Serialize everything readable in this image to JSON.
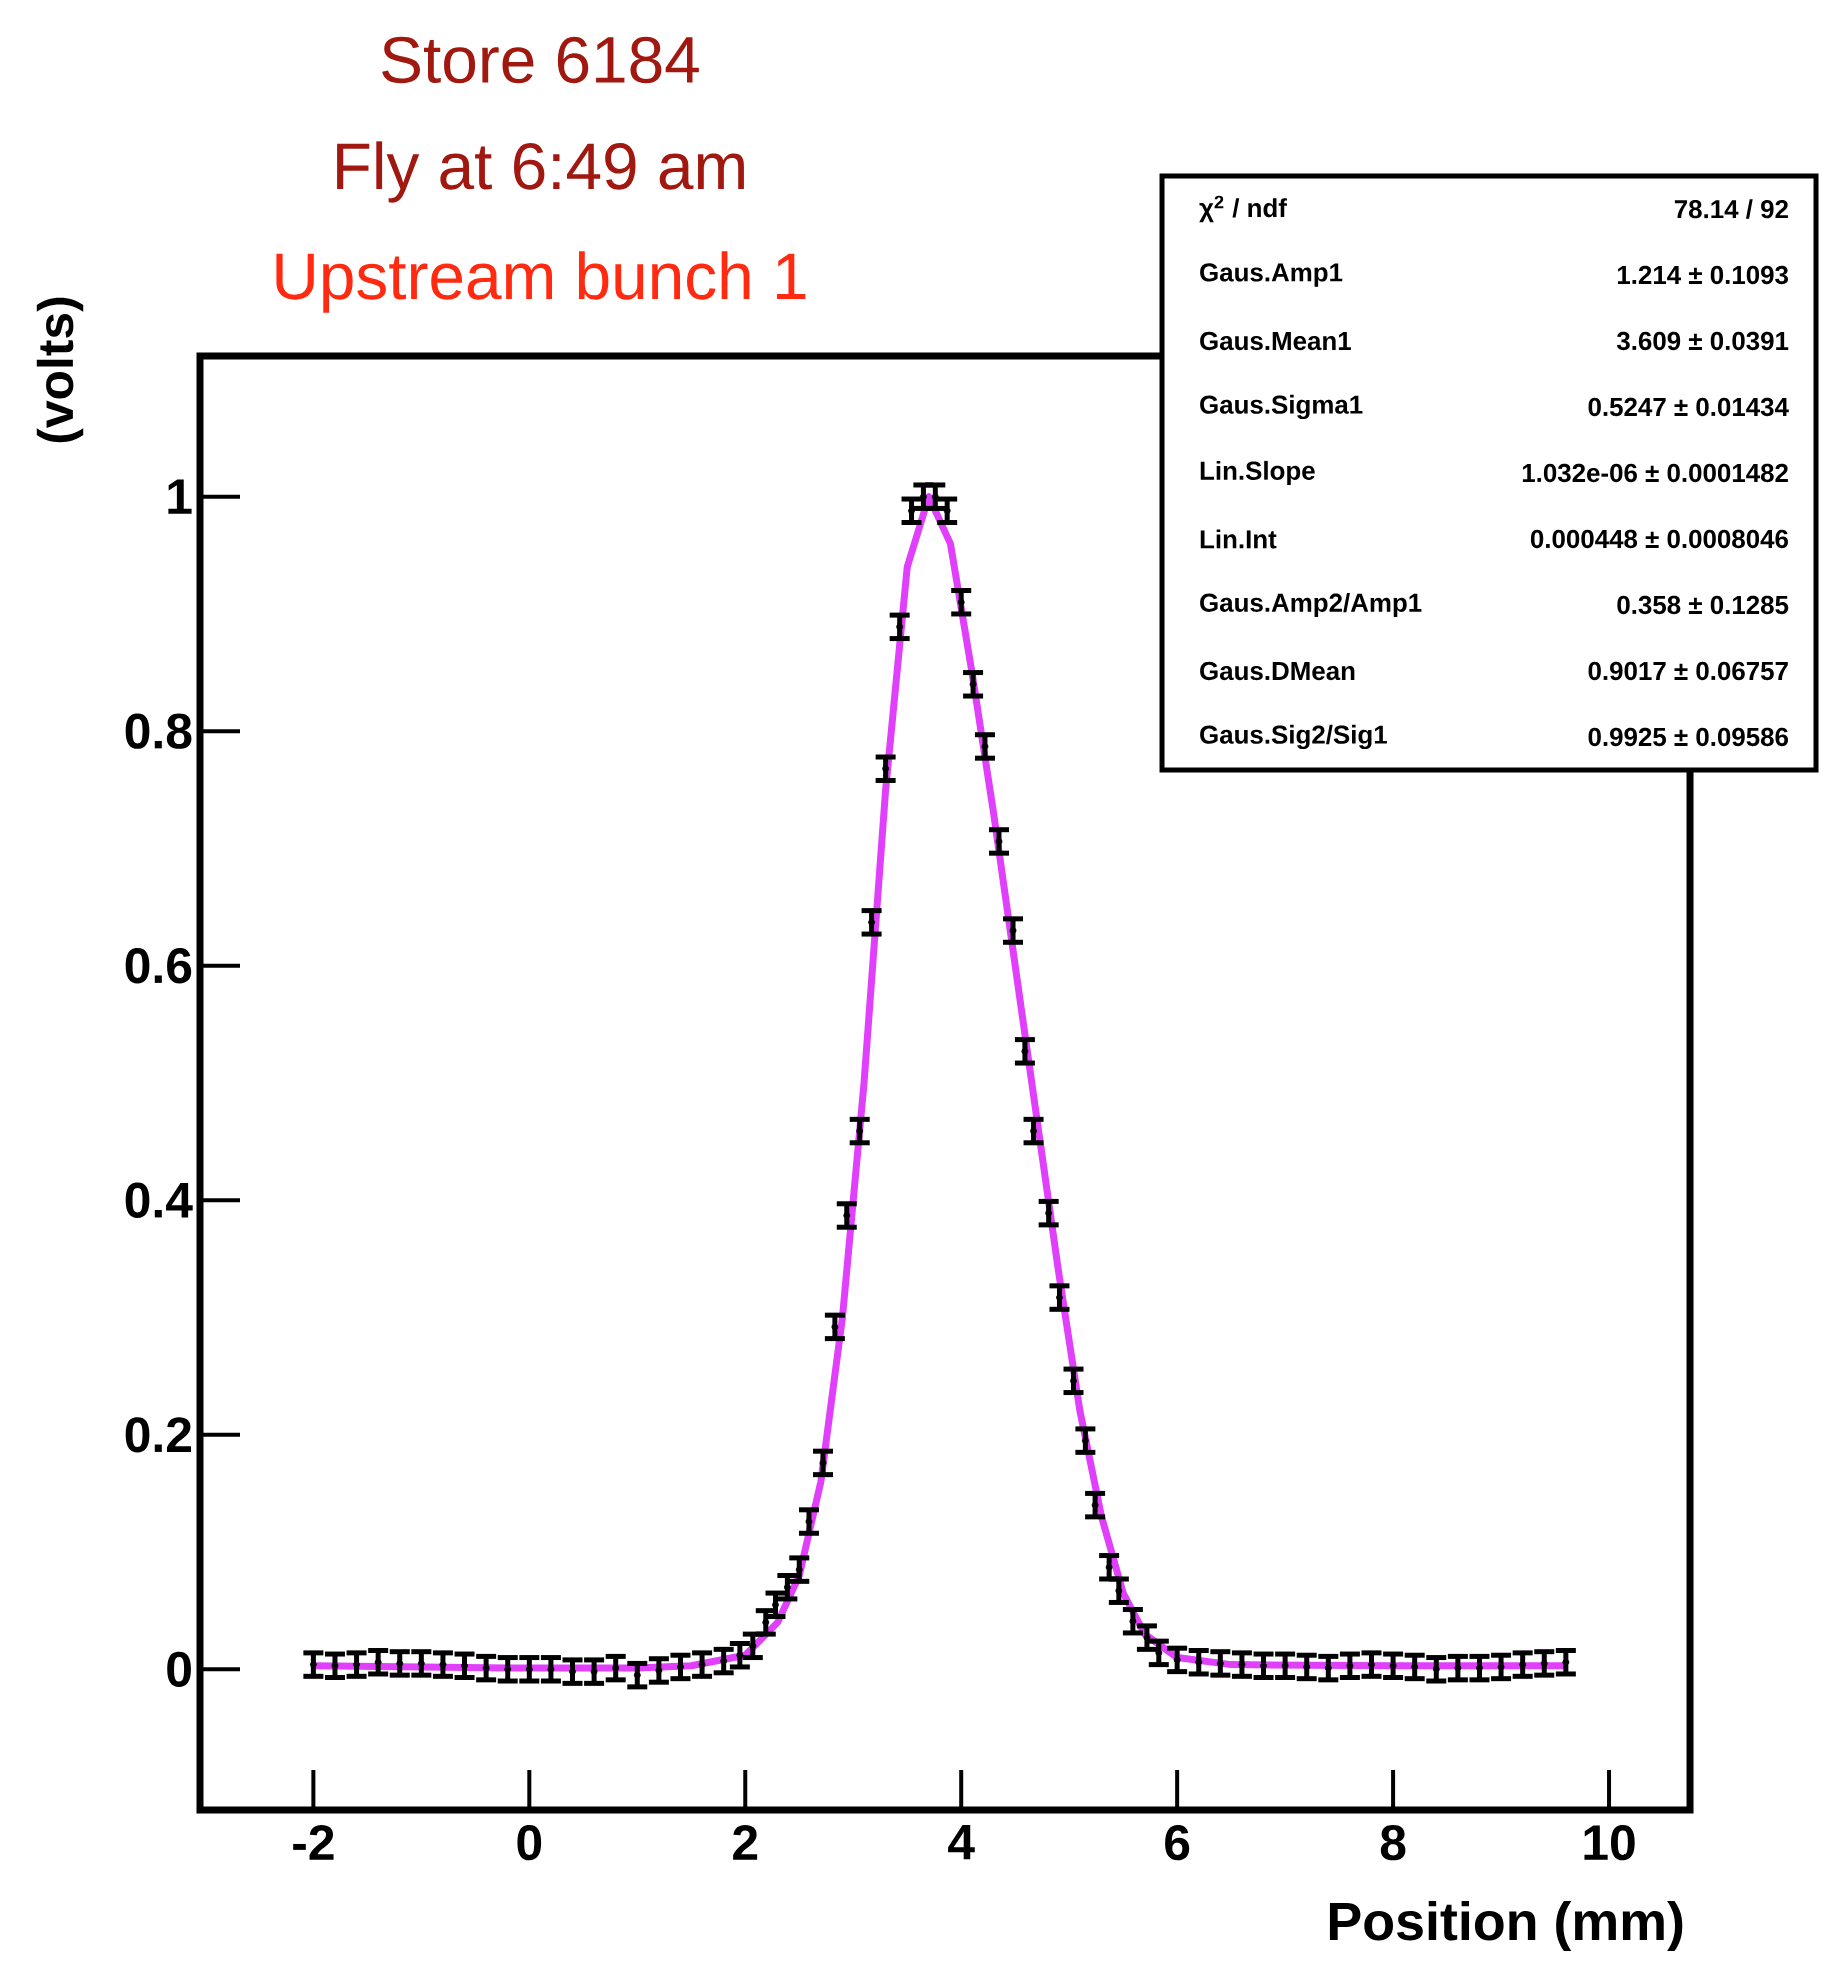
{
  "chart_data": {
    "type": "scatter",
    "title": "Store 6184",
    "subtitle": "Fly at 6:49 am",
    "xlabel": "Position (mm)",
    "ylabel": "(volts)",
    "annotations": [
      "Upstream bunch 1",
      "χ$^{2}$ / ndf",
      "78.14 / 92",
      "Gaus.Amp1",
      "1.214 ± 0.1093",
      "Gaus.Mean1",
      "3.609 ± 0.0391",
      "Gaus.Sigma1",
      "0.5247 ± 0.01434",
      "Lin.Slope",
      "1.032e-06 ± 0.0001482",
      "Lin.Int",
      "0.000448 ± 0.0008046",
      "Gaus.Amp2/Amp1",
      "0.358 ± 0.1285",
      "Gaus.DMean",
      "0.9017 ± 0.06757",
      "Gaus.Sig2/Sig1",
      "0.9925 ± 0.09586"
    ],
    "xlim": [
      -3.05,
      10.75
    ],
    "ylim": [
      -0.12,
      1.12
    ],
    "xticks": [
      -2,
      0,
      2,
      4,
      6,
      8,
      10
    ],
    "yticks": [
      0,
      0.2,
      0.4,
      0.6,
      0.8,
      1
    ],
    "grid": false,
    "series": [
      {
        "type": "line",
        "color": "#e040fb",
        "x": [
          -2,
          0,
          1.0,
          1.5,
          2.0,
          2.3,
          2.5,
          2.7,
          2.9,
          3.1,
          3.3,
          3.5,
          3.7,
          3.9,
          4.1,
          4.3,
          4.5,
          4.7,
          4.9,
          5.1,
          5.3,
          5.5,
          5.7,
          6.0,
          6.5,
          8,
          9.6
        ],
        "values": [
          0.003,
          0.001,
          0.001,
          0.003,
          0.012,
          0.04,
          0.08,
          0.16,
          0.3,
          0.5,
          0.75,
          0.94,
          1.0,
          0.96,
          0.85,
          0.73,
          0.6,
          0.47,
          0.34,
          0.22,
          0.13,
          0.065,
          0.03,
          0.01,
          0.004,
          0.003,
          0.003
        ]
      },
      {
        "color": "#000000",
        "marker": "circle",
        "x": [
          -2.0,
          -1.8,
          -1.6,
          -1.4,
          -1.2,
          -1.0,
          -0.8,
          -0.6,
          -0.4,
          -0.2,
          0.0,
          0.2,
          0.4,
          0.6,
          0.8,
          1.0,
          1.2,
          1.4,
          1.6,
          1.8,
          1.95,
          2.07,
          2.19,
          2.28,
          2.39,
          2.5,
          2.59,
          2.72,
          2.83,
          2.94,
          3.06,
          3.17,
          3.3,
          3.43,
          3.54,
          3.65,
          3.76,
          3.87,
          4.0,
          4.11,
          4.22,
          4.35,
          4.48,
          4.59,
          4.67,
          4.81,
          4.91,
          5.04,
          5.15,
          5.24,
          5.37,
          5.46,
          5.59,
          5.72,
          5.83,
          6.0,
          6.2,
          6.4,
          6.6,
          6.8,
          7.0,
          7.2,
          7.4,
          7.6,
          7.8,
          8.0,
          8.2,
          8.4,
          8.6,
          8.8,
          9.0,
          9.2,
          9.4,
          9.6
        ],
        "values": [
          0.004,
          0.003,
          0.004,
          0.006,
          0.005,
          0.005,
          0.004,
          0.003,
          0.001,
          0.0,
          0.0,
          0.0,
          -0.002,
          -0.002,
          0.001,
          -0.005,
          -0.001,
          0.002,
          0.004,
          0.007,
          0.012,
          0.02,
          0.04,
          0.055,
          0.07,
          0.085,
          0.126,
          0.176,
          0.292,
          0.387,
          0.459,
          0.637,
          0.768,
          0.889,
          0.988,
          1.0,
          1.0,
          0.988,
          0.91,
          0.84,
          0.787,
          0.706,
          0.63,
          0.527,
          0.459,
          0.389,
          0.317,
          0.246,
          0.195,
          0.14,
          0.087,
          0.067,
          0.041,
          0.027,
          0.014,
          0.008,
          0.006,
          0.005,
          0.004,
          0.003,
          0.003,
          0.002,
          0.001,
          0.003,
          0.004,
          0.003,
          0.002,
          0.0,
          0.001,
          0.001,
          0.002,
          0.004,
          0.005,
          0.006
        ],
        "errors": [
          0.01,
          0.01,
          0.01,
          0.01,
          0.01,
          0.01,
          0.01,
          0.01,
          0.01,
          0.01,
          0.01,
          0.01,
          0.01,
          0.01,
          0.01,
          0.01,
          0.01,
          0.01,
          0.01,
          0.01,
          0.01,
          0.01,
          0.01,
          0.01,
          0.01,
          0.01,
          0.01,
          0.01,
          0.01,
          0.01,
          0.01,
          0.01,
          0.01,
          0.01,
          0.01,
          0.01,
          0.01,
          0.01,
          0.01,
          0.01,
          0.01,
          0.01,
          0.01,
          0.01,
          0.01,
          0.01,
          0.01,
          0.01,
          0.01,
          0.01,
          0.01,
          0.01,
          0.01,
          0.01,
          0.01,
          0.01,
          0.01,
          0.01,
          0.01,
          0.01,
          0.01,
          0.01,
          0.01,
          0.01,
          0.01,
          0.01,
          0.01,
          0.01,
          0.01,
          0.01,
          0.01,
          0.01,
          0.01,
          0.01
        ]
      }
    ]
  }
}
